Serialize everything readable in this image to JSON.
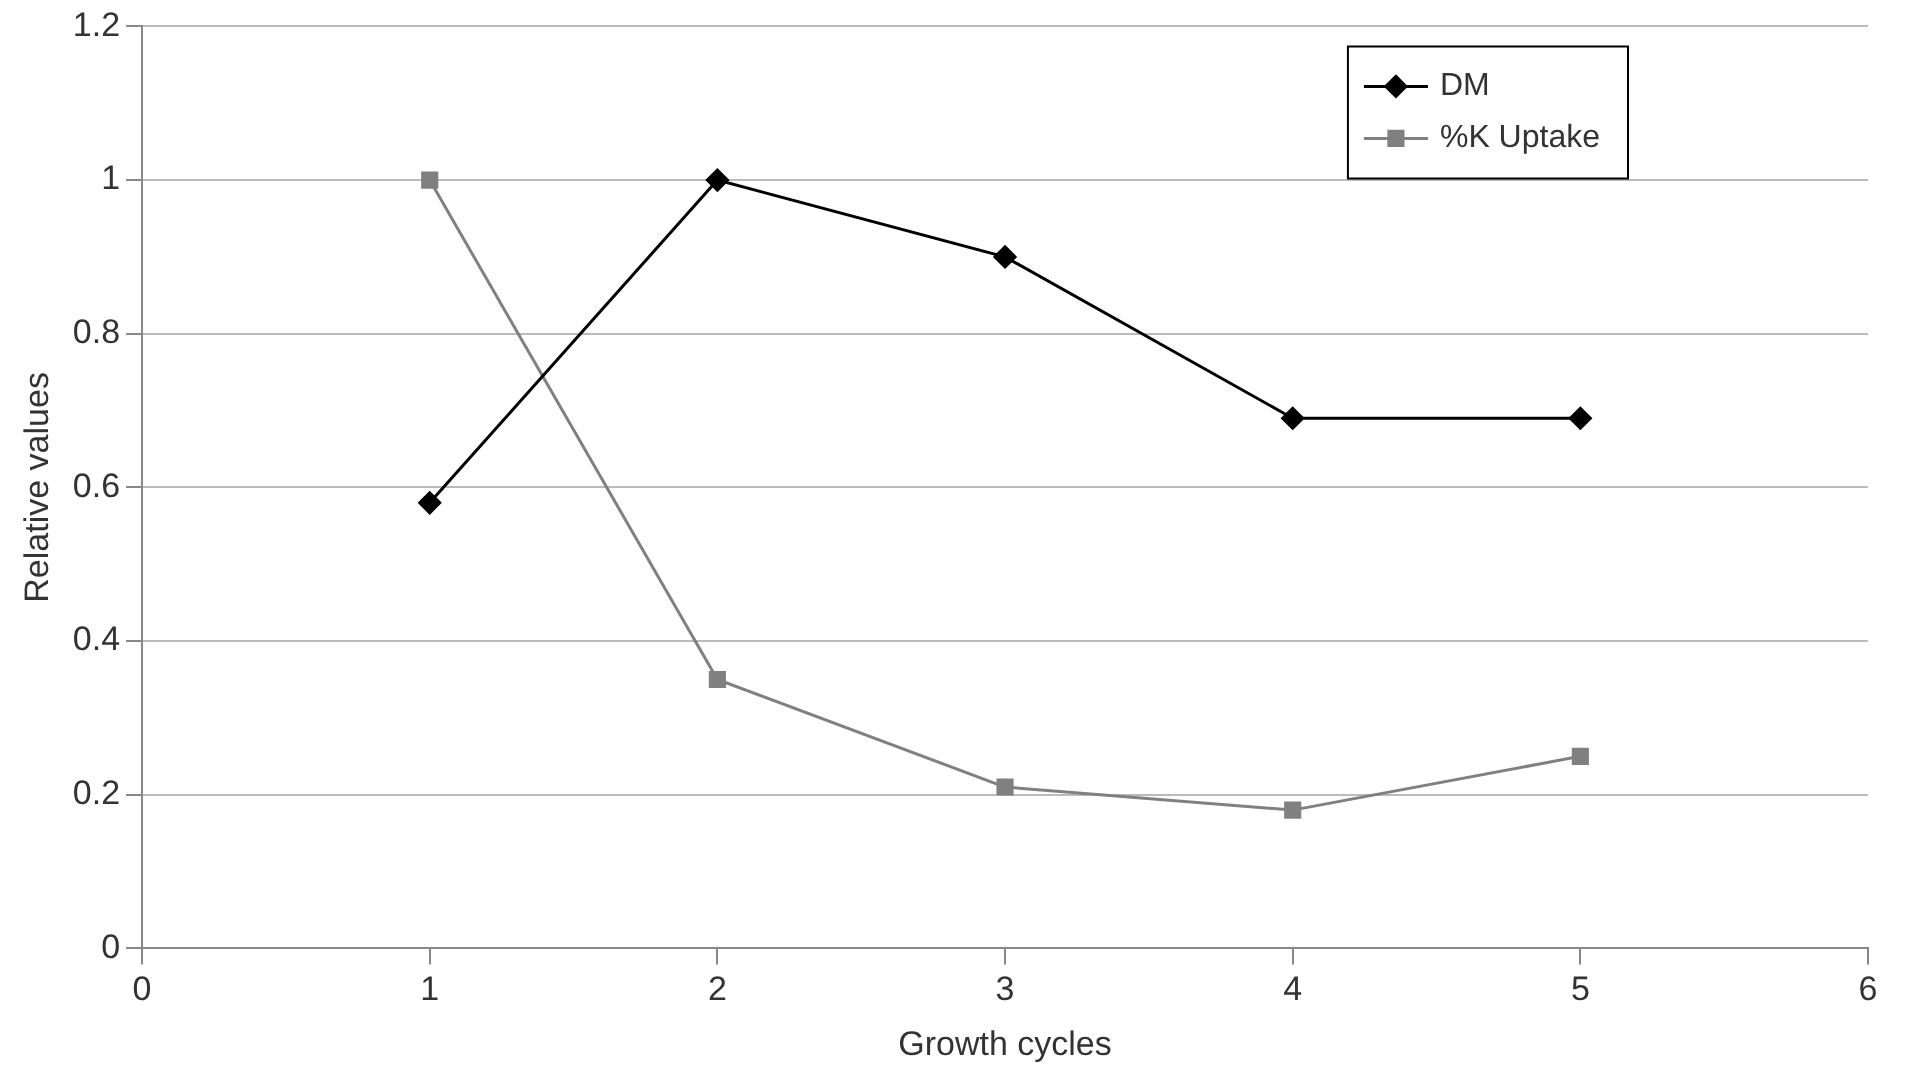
{
  "chart_data": {
    "type": "line",
    "xlabel": "Growth cycles",
    "ylabel": "Relative values",
    "x": [
      1,
      2,
      3,
      4,
      5
    ],
    "series": [
      {
        "name": "DM",
        "color": "#000000",
        "marker": "diamond",
        "values": [
          0.58,
          1.0,
          0.9,
          0.69,
          0.69
        ]
      },
      {
        "name": "%K Uptake",
        "color": "#808080",
        "marker": "square",
        "values": [
          1.0,
          0.35,
          0.21,
          0.18,
          0.25
        ]
      }
    ],
    "xlim": [
      0,
      6
    ],
    "xticks": [
      0,
      1,
      2,
      3,
      4,
      5,
      6
    ],
    "ylim": [
      0,
      1.2
    ],
    "yticks": [
      0,
      0.2,
      0.4,
      0.6,
      0.8,
      1,
      1.2
    ],
    "grid": "y",
    "legend": "top right",
    "line_style": "solid"
  }
}
